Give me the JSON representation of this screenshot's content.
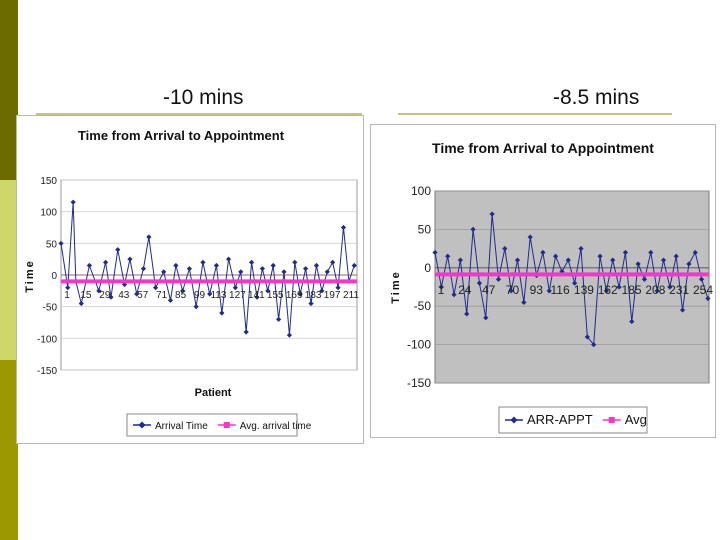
{
  "headings": {
    "left": "-10 mins",
    "right": "-8.5 mins"
  },
  "colors": {
    "bar_dark": "#6b6b00",
    "bar_light": "#cfd66a",
    "bar_mid": "#9a9a00",
    "series_primary": "#1f2c8a",
    "series_avg": "#ff33cc",
    "plot_bg_right": "#c0c0c0"
  },
  "chart_data": [
    {
      "type": "line",
      "title": "Time from Arrival to Appointment",
      "xlabel": "Patient",
      "ylabel": "Time",
      "ylim": [
        -150,
        150
      ],
      "yticks": [
        150,
        100,
        50,
        0,
        -50,
        -100,
        -150
      ],
      "x_tick_labels": [
        "1",
        "15",
        "29",
        "43",
        "57",
        "71",
        "85",
        "99",
        "113",
        "127",
        "141",
        "155",
        "169",
        "183",
        "197",
        "211"
      ],
      "x_range": [
        1,
        220
      ],
      "grid": "horizontal",
      "plot_background": "#ffffff",
      "legend_position": "bottom",
      "series": [
        {
          "name": "Arrival Time",
          "marker": "diamond",
          "color": "#1f2c8a",
          "x": [
            1,
            6,
            10,
            12,
            16,
            22,
            29,
            34,
            38,
            43,
            48,
            52,
            57,
            62,
            66,
            71,
            77,
            82,
            86,
            91,
            96,
            101,
            106,
            111,
            116,
            120,
            125,
            130,
            134,
            138,
            142,
            146,
            150,
            154,
            158,
            162,
            166,
            170,
            174,
            178,
            182,
            186,
            190,
            194,
            198,
            202,
            206,
            210,
            214,
            218
          ],
          "y": [
            50,
            -20,
            115,
            -10,
            -45,
            15,
            -25,
            20,
            -35,
            40,
            -15,
            25,
            -30,
            10,
            60,
            -20,
            5,
            -40,
            15,
            -25,
            10,
            -50,
            20,
            -30,
            15,
            -60,
            25,
            -20,
            5,
            -90,
            20,
            -35,
            10,
            -25,
            15,
            -70,
            5,
            -95,
            20,
            -30,
            10,
            -45,
            15,
            -25,
            5,
            20,
            -20,
            75,
            -10,
            15
          ]
        },
        {
          "name": "Avg. arrival time",
          "marker": "square",
          "color": "#ff33cc",
          "x": [
            1,
            220
          ],
          "y": [
            -10,
            -10
          ]
        }
      ]
    },
    {
      "type": "line",
      "title": "Time from Arrival to Appointment",
      "xlabel": "",
      "ylabel": "Time",
      "ylim": [
        -150,
        100
      ],
      "yticks": [
        100,
        50,
        0,
        -50,
        -100,
        -150
      ],
      "x_tick_labels": [
        "1",
        "24",
        "47",
        "70",
        "93",
        "116",
        "139",
        "162",
        "185",
        "208",
        "231",
        "254"
      ],
      "x_range": [
        1,
        260
      ],
      "grid": "horizontal",
      "plot_background": "#c0c0c0",
      "legend_position": "bottom",
      "series": [
        {
          "name": "ARR-APPT",
          "marker": "diamond",
          "color": "#1f2c8a",
          "x": [
            1,
            7,
            13,
            19,
            25,
            31,
            37,
            43,
            49,
            55,
            61,
            67,
            73,
            79,
            85,
            91,
            97,
            103,
            109,
            115,
            121,
            127,
            133,
            139,
            145,
            151,
            157,
            163,
            169,
            175,
            181,
            187,
            193,
            199,
            205,
            211,
            217,
            223,
            229,
            235,
            241,
            247,
            253,
            259
          ],
          "y": [
            20,
            -25,
            15,
            -35,
            10,
            -60,
            50,
            -20,
            -65,
            70,
            -15,
            25,
            -30,
            10,
            -45,
            40,
            -10,
            20,
            -30,
            15,
            -5,
            10,
            -20,
            25,
            -90,
            -100,
            15,
            -30,
            10,
            -25,
            20,
            -70,
            5,
            -15,
            20,
            -30,
            10,
            -25,
            15,
            -55,
            5,
            20,
            -15,
            -40
          ]
        },
        {
          "name": "Avg",
          "marker": "square",
          "color": "#ff33cc",
          "x": [
            1,
            260
          ],
          "y": [
            -8.5,
            -8.5
          ]
        }
      ]
    }
  ]
}
